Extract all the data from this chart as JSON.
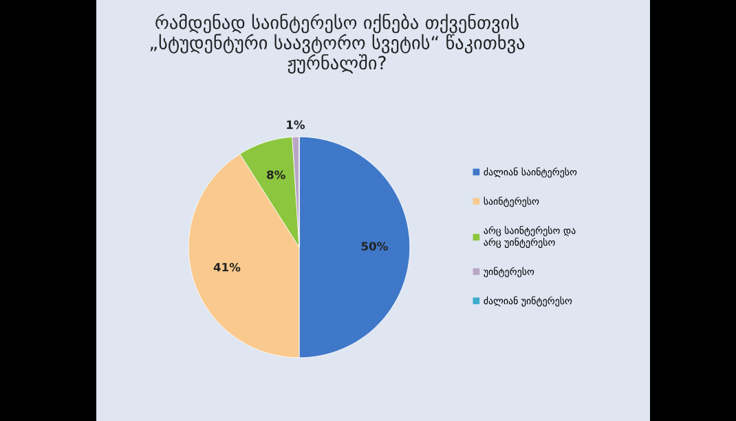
{
  "chart_data": {
    "type": "pie",
    "title": "რამდენად საინტერესო იქნება თქვენთვის\n„სტუდენტური საავტორო სვეტის“ წაკითხვა\nჟურნალში?",
    "categories": [
      "ძალიან საინტერესო",
      "საინტერესო",
      "არც საინტერესო და\nარც უინტერესო",
      "უინტერესო",
      "ძალიან უინტერესო"
    ],
    "values": [
      50,
      41,
      8,
      1,
      0
    ],
    "colors": [
      "#3f78c8",
      "#f9c98e",
      "#8cc63e",
      "#b9a6c6",
      "#3eaccd"
    ],
    "value_labels": [
      "50%",
      "41%",
      "8%",
      "1%",
      null
    ],
    "legend": "right"
  }
}
